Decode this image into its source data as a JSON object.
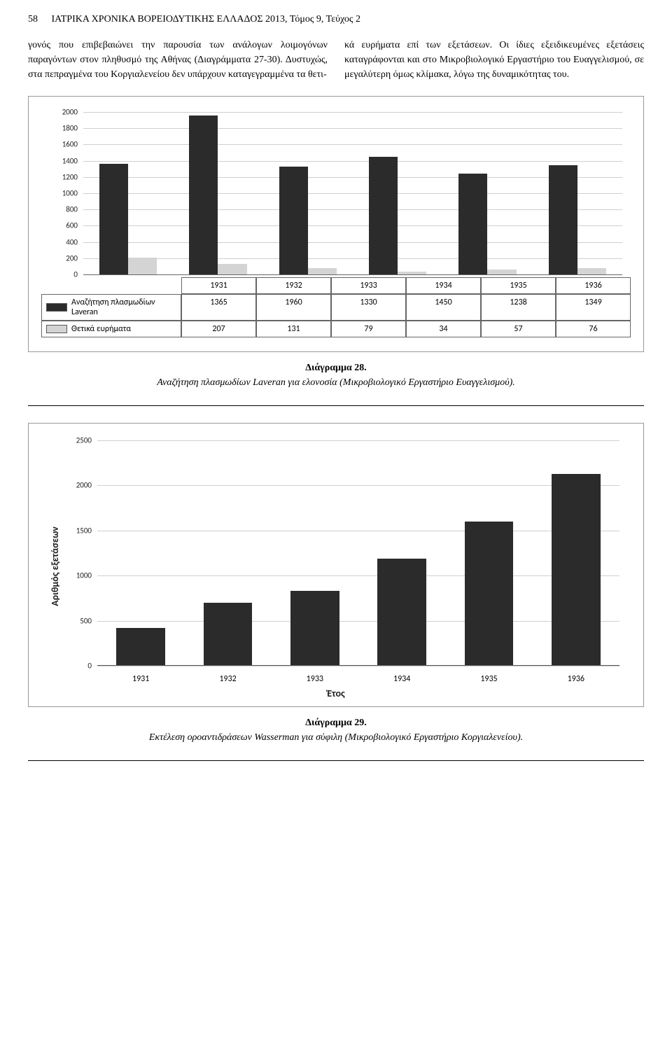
{
  "header": {
    "page_number": "58",
    "running_title": "ΙΑΤΡΙΚΑ ΧΡΟΝΙΚΑ ΒΟΡΕΙΟΔΥΤΙΚΗΣ ΕΛΛΑΔΟΣ 2013, Τόμος 9, Τεύχος 2"
  },
  "body": {
    "col1": "γονός που επιβεβαιώνει την παρουσία των ανάλογων λοιμογόνων παραγόντων στον πληθυσμό της Αθήνας (Διαγράμματα 27-30). Δυστυχώς, στα πεπραγμένα του Κοργιαλενείου δεν υπάρχουν καταγεγραμμένα τα θετι-",
    "col2": "κά ευρήματα επί των εξετάσεων. Οι ίδιες εξειδικευμένες εξετάσεις καταγράφονται και στο Μικροβιολογικό Εργαστήριο του Ευαγγελισμού, σε μεγαλύτερη όμως κλίμακα, λόγω της δυναμικότητας του."
  },
  "chart28": {
    "type": "grouped-bar",
    "categories": [
      "1931",
      "1932",
      "1933",
      "1934",
      "1935",
      "1936"
    ],
    "series": [
      {
        "name": "Αναζήτηση πλασμωδίων Laveran",
        "values": [
          1365,
          1960,
          1330,
          1450,
          1238,
          1349
        ],
        "color": "#2b2b2b"
      },
      {
        "name": "Θετικά ευρήματα",
        "values": [
          207,
          131,
          79,
          34,
          57,
          76
        ],
        "color": "#d4d4d4"
      }
    ],
    "ylim": [
      0,
      2000
    ],
    "ytick_step": 200,
    "grid_color": "#cfcfcf",
    "background_color": "#ffffff",
    "tick_fontsize": 11,
    "table_fontsize": 12,
    "bar_fill_dark": "#2b2b2b",
    "bar_fill_light": "#d4d4d4",
    "caption_title": "Διάγραμμα 28.",
    "caption_text": "Αναζήτηση πλασμωδίων Laveran για ελονοσία (Μικροβιολογικό Εργαστήριο Ευαγγελισμού)."
  },
  "chart29": {
    "type": "bar",
    "categories": [
      "1931",
      "1932",
      "1933",
      "1934",
      "1935",
      "1936"
    ],
    "values": [
      420,
      700,
      830,
      1190,
      1600,
      2130
    ],
    "bar_color": "#2b2b2b",
    "ylabel": "Αριθμός εξετάσεων",
    "xlabel": "Έτος",
    "ylim": [
      0,
      2500
    ],
    "ytick_step": 500,
    "grid_color": "#cfcfcf",
    "background_color": "#ffffff",
    "tick_fontsize": 12,
    "axis_label_fontsize": 14,
    "caption_title": "Διάγραμμα 29.",
    "caption_text": "Εκτέλεση οροαντιδράσεων Wasserman για σύφιλη  (Μικροβιολογικό Εργαστήριο Κοργιαλενείου)."
  }
}
